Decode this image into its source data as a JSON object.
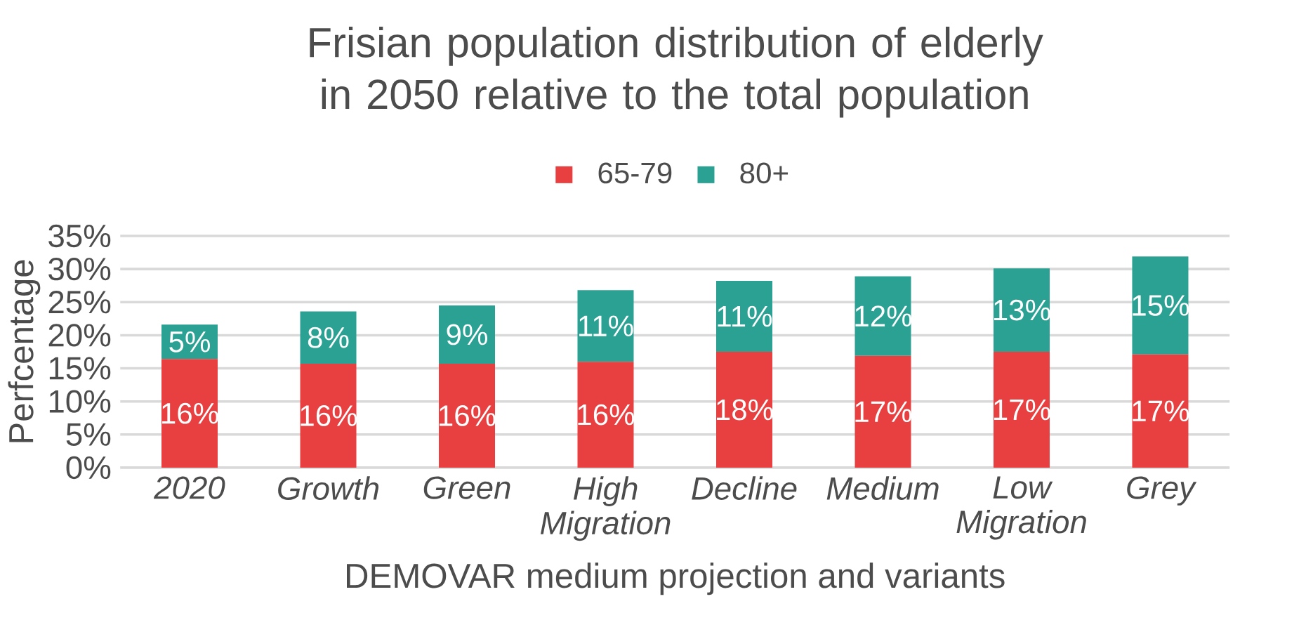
{
  "chart_data": {
    "type": "bar",
    "stacked": true,
    "title": "Frisian population distribution of elderly in 2050 relative to the total population",
    "xlabel": "DEMOVAR medium projection and variants",
    "ylabel": "Perfcentage",
    "categories": [
      "2020",
      "Growth",
      "Green",
      "High Migration",
      "Decline",
      "Medium",
      "Low Migration",
      "Grey"
    ],
    "series": [
      {
        "name": "65-79",
        "color": "#e84040",
        "values": [
          16.4,
          15.7,
          15.7,
          16.0,
          17.5,
          16.9,
          17.5,
          17.1
        ],
        "value_labels": [
          "16%",
          "16%",
          "16%",
          "16%",
          "18%",
          "17%",
          "17%",
          "17%"
        ]
      },
      {
        "name": "80+",
        "color": "#2aa193",
        "values": [
          5.2,
          7.9,
          8.8,
          10.8,
          10.7,
          12.0,
          12.6,
          14.8
        ],
        "value_labels": [
          "5%",
          "8%",
          "9%",
          "11%",
          "11%",
          "12%",
          "13%",
          "15%"
        ]
      }
    ],
    "ylim": [
      0,
      35
    ],
    "yticks": [
      {
        "value": 0,
        "label": "0%"
      },
      {
        "value": 5,
        "label": "5%"
      },
      {
        "value": 10,
        "label": "10%"
      },
      {
        "value": 15,
        "label": "15%"
      },
      {
        "value": 20,
        "label": "20%"
      },
      {
        "value": 25,
        "label": "25%"
      },
      {
        "value": 30,
        "label": "30%"
      },
      {
        "value": 35,
        "label": "35%"
      }
    ],
    "grid": "y",
    "legend": "top"
  }
}
